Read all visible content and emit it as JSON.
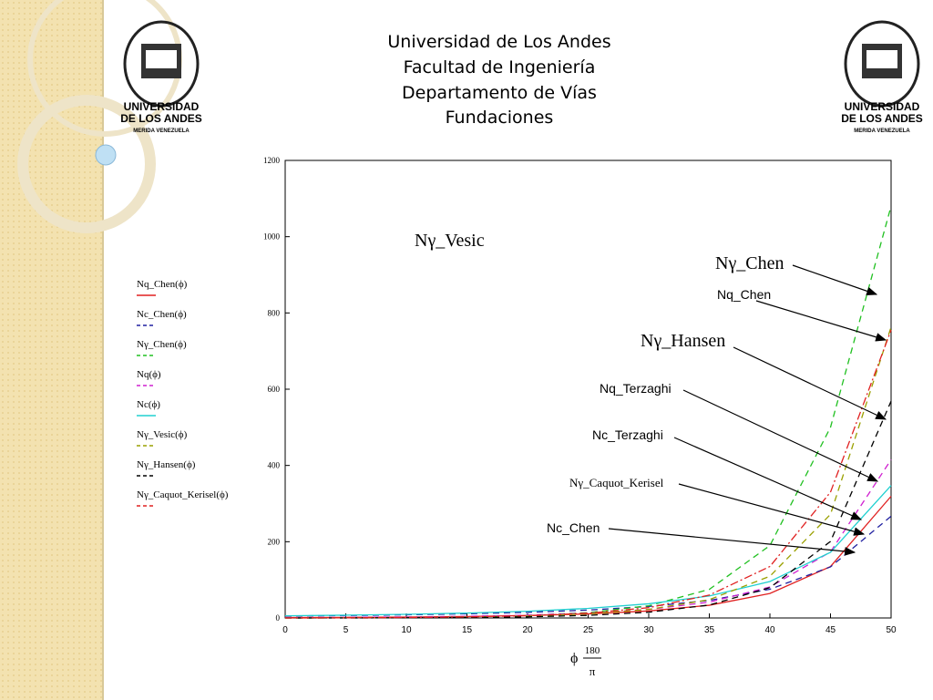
{
  "header": {
    "lines": [
      "Universidad de Los Andes",
      "Facultad de Ingeniería",
      "Departamento de Vías",
      "Fundaciones"
    ],
    "logo_name": [
      "UNIVERSIDAD",
      "DE LOS ANDES"
    ],
    "logo_place": "MERIDA VENEZUELA"
  },
  "chart_data": {
    "type": "line",
    "x": [
      0,
      5,
      10,
      15,
      20,
      25,
      30,
      35,
      40,
      45,
      50
    ],
    "xlim": [
      0,
      50
    ],
    "xticks": [
      0,
      5,
      10,
      15,
      20,
      25,
      30,
      35,
      40,
      45,
      50
    ],
    "ylim": [
      0,
      1200
    ],
    "yticks": [
      0,
      200,
      400,
      600,
      800,
      1000,
      1200
    ],
    "x_label": {
      "phi": "ϕ",
      "num": "180",
      "den": "π"
    },
    "series": [
      {
        "name": "Nq_Chen(ϕ)",
        "color": "#e02020",
        "dash": "solid",
        "values": [
          1,
          1.57,
          2.47,
          3.94,
          6.4,
          10.66,
          18.4,
          33.3,
          64.2,
          134.9,
          319.1
        ]
      },
      {
        "name": "Nc_Chen(ϕ)",
        "color": "#2020a0",
        "dash": "dashed",
        "values": [
          5.14,
          6.49,
          8.35,
          10.98,
          14.83,
          20.72,
          30.14,
          46.12,
          75.31,
          133.9,
          266.9
        ]
      },
      {
        "name": "Nγ_Chen(ϕ)",
        "color": "#20c020",
        "dash": "dashed",
        "values": [
          0,
          0.3,
          1.2,
          3.2,
          7,
          14,
          32,
          75,
          190,
          500,
          1080
        ]
      },
      {
        "name": "Nq(ϕ)",
        "color": "#d020d0",
        "dash": "dashed",
        "values": [
          1,
          1.64,
          2.69,
          4.45,
          7.44,
          12.72,
          22.46,
          41.44,
          81.27,
          173.3,
          415.1
        ]
      },
      {
        "name": "Nc(ϕ)",
        "color": "#20d0d0",
        "dash": "solid",
        "values": [
          5.7,
          7.34,
          9.61,
          12.86,
          17.69,
          25.13,
          37.16,
          57.75,
          95.66,
          172.3,
          347.5
        ]
      },
      {
        "name": "Nγ_Vesic(ϕ)",
        "color": "#9aa000",
        "dash": "dashed",
        "values": [
          0,
          0.45,
          1.22,
          2.65,
          5.39,
          10.88,
          22.4,
          48.03,
          109.4,
          271.8,
          762.9
        ]
      },
      {
        "name": "Nγ_Hansen(ϕ)",
        "color": "#000000",
        "dash": "dashed",
        "values": [
          0,
          0.07,
          0.39,
          1.18,
          2.95,
          6.76,
          15.07,
          33.92,
          79.54,
          200.8,
          568.6
        ]
      },
      {
        "name": "Nγ_Caquot_Kerisel(ϕ)",
        "color": "#e02020",
        "dash": "dashdot",
        "values": [
          0,
          0.4,
          1.2,
          2.8,
          5.9,
          12.4,
          27,
          60,
          135,
          330,
          755
        ]
      }
    ],
    "annotations": [
      "Nγ_Vesic",
      "Nγ_Chen",
      "Nq_Chen",
      "Nγ_Hansen",
      "Nq_Terzaghi",
      "Nc_Terzaghi",
      "Nγ_Caquot_Kerisel",
      "Nc_Chen"
    ]
  }
}
